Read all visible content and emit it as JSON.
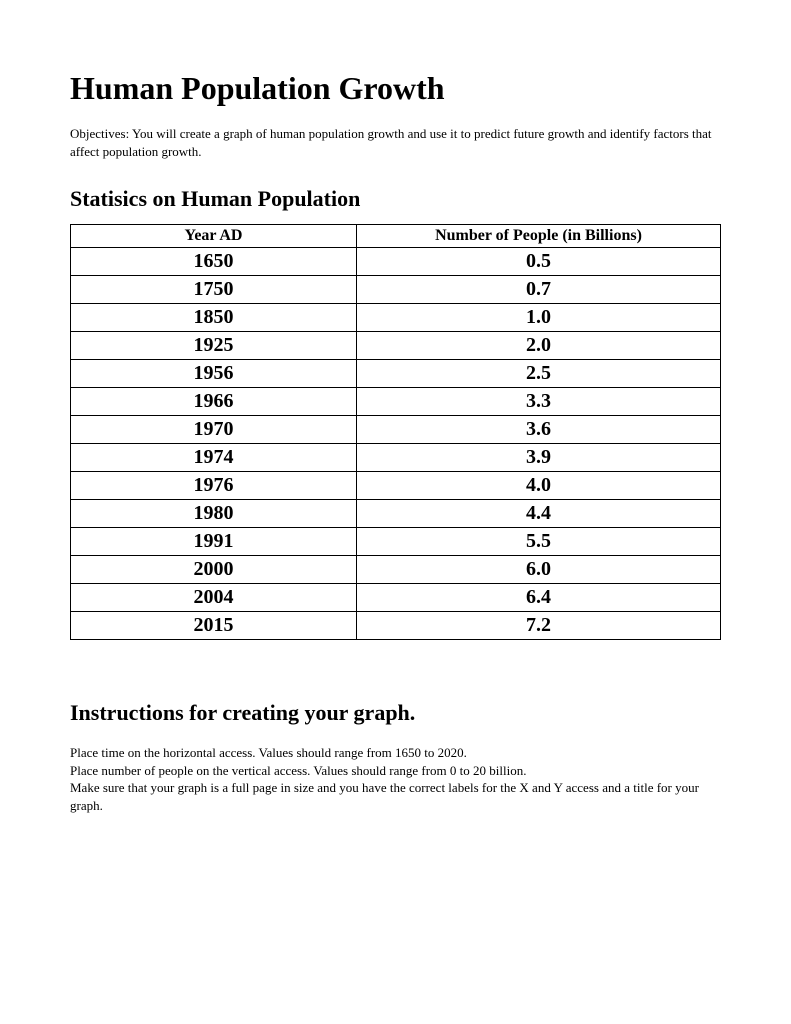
{
  "title": "Human Population Growth",
  "objectives": "Objectives: You will create a graph of human population growth and use it to predict future growth and identify factors that affect population growth.",
  "stats_heading": "Statisics on Human Population",
  "table": {
    "columns": [
      "Year AD",
      "Number of People (in Billions)"
    ],
    "rows": [
      [
        "1650",
        "0.5"
      ],
      [
        "1750",
        "0.7"
      ],
      [
        "1850",
        "1.0"
      ],
      [
        "1925",
        "2.0"
      ],
      [
        "1956",
        "2.5"
      ],
      [
        "1966",
        "3.3"
      ],
      [
        "1970",
        "3.6"
      ],
      [
        "1974",
        "3.9"
      ],
      [
        "1976",
        "4.0"
      ],
      [
        "1980",
        "4.4"
      ],
      [
        "1991",
        "5.5"
      ],
      [
        "2000",
        "6.0"
      ],
      [
        "2004",
        "6.4"
      ],
      [
        "2015",
        "7.2"
      ]
    ],
    "header_fontsize": 16,
    "cell_fontsize": 20,
    "border_color": "#000000",
    "text_color": "#000000",
    "background_color": "#ffffff"
  },
  "instructions_heading": "Instructions for creating your graph.",
  "instructions": [
    "Place time on the horizontal access. Values should range from 1650 to 2020.",
    "Place number of people on the vertical access. Values should range from 0 to 20 billion.",
    "Make sure that your graph is a full page in size and you have the correct labels for the X and Y access and a title for your graph."
  ]
}
